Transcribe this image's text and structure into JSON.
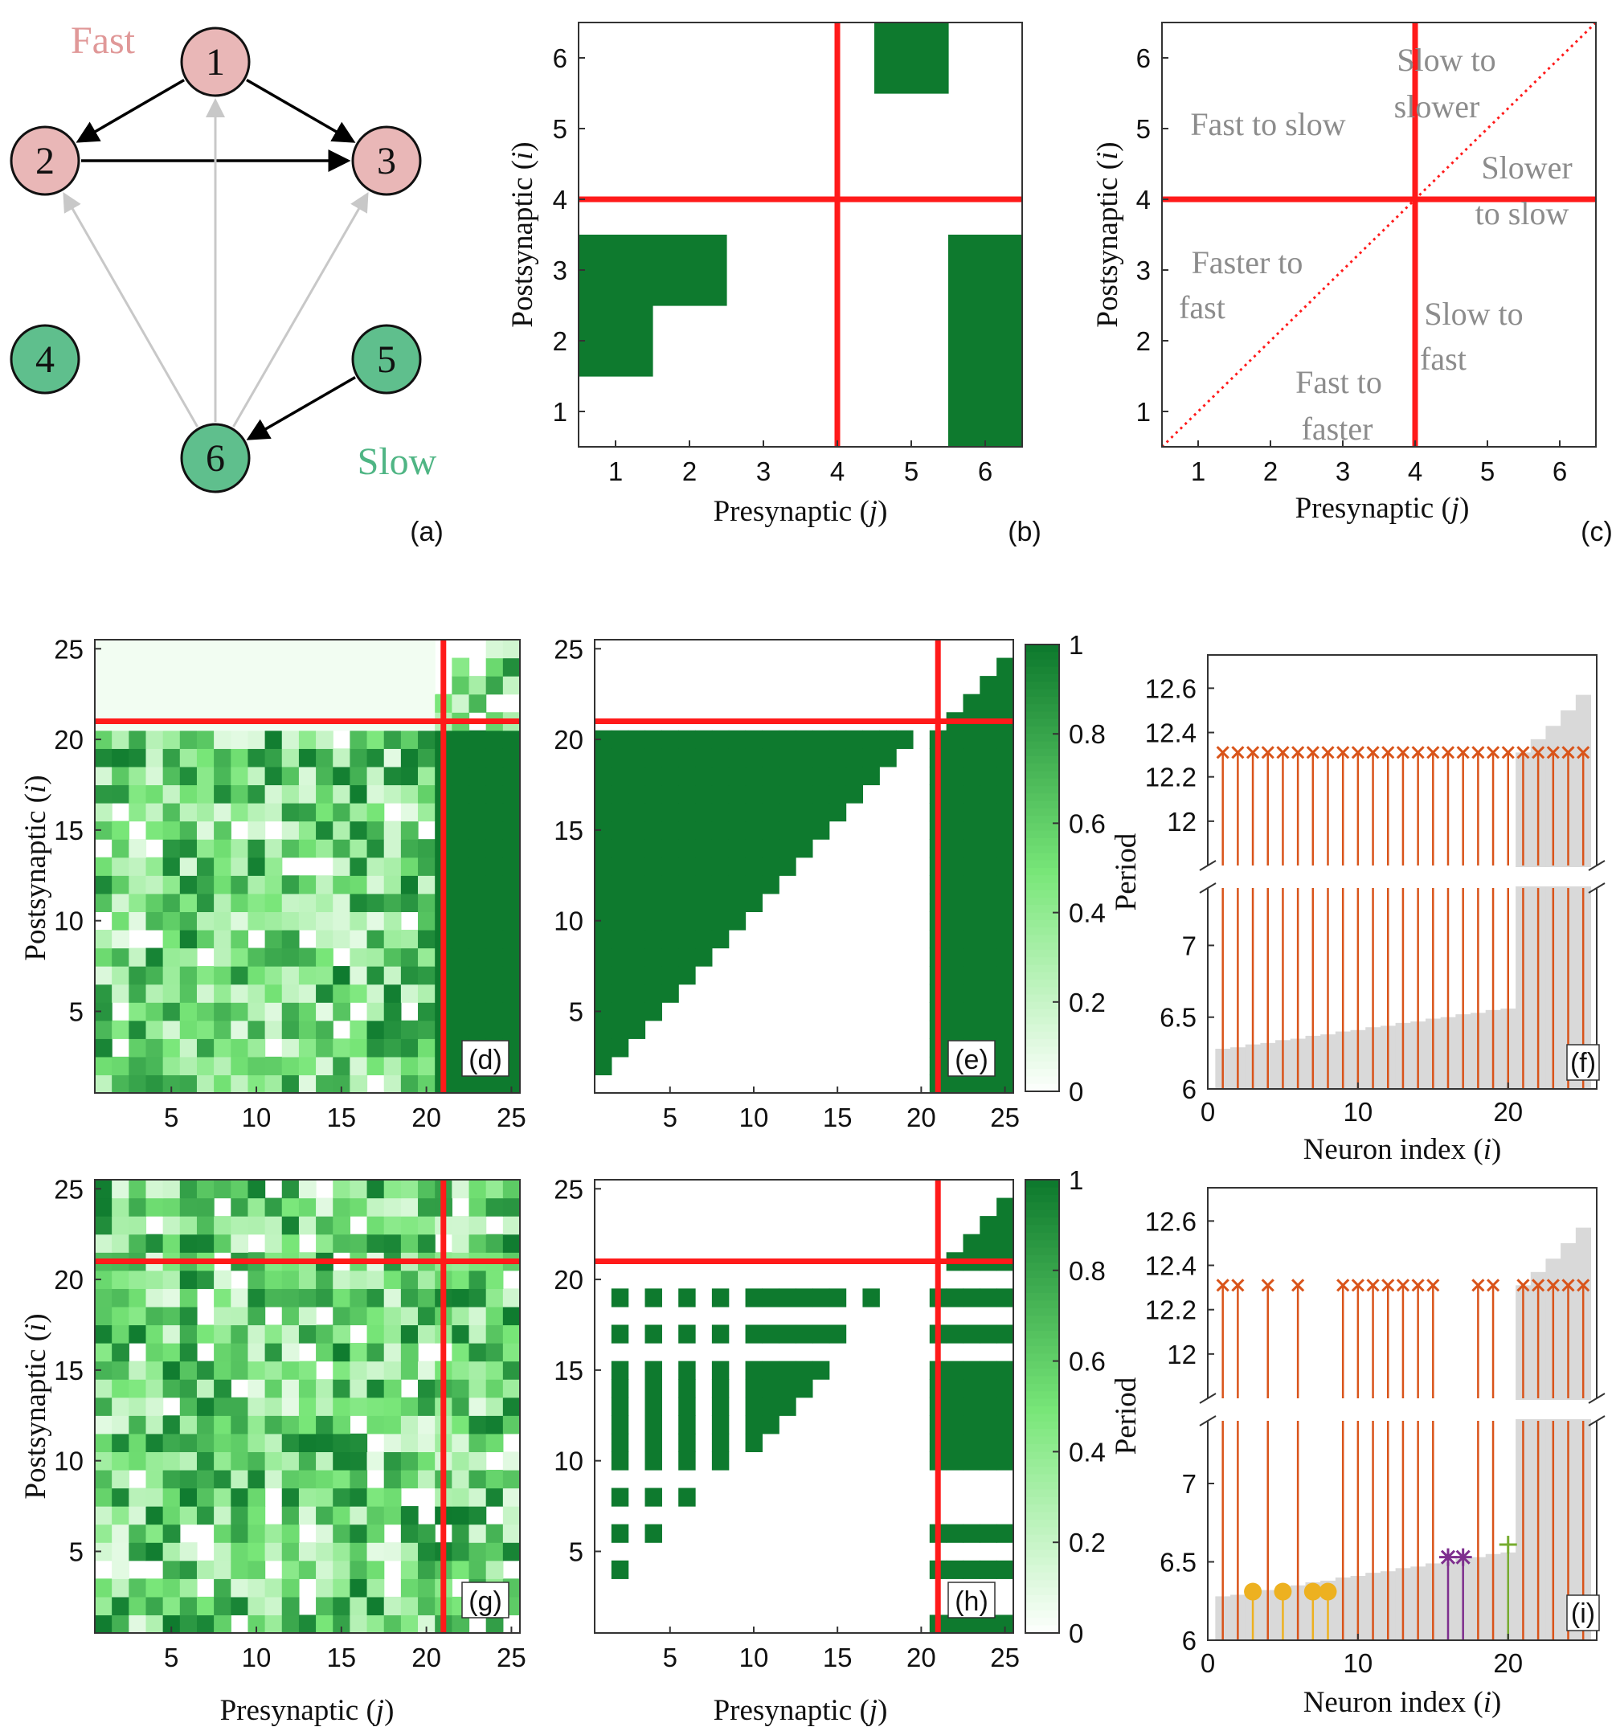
{
  "chart_data": [
    {
      "panel": "(a)",
      "type": "network",
      "group_labels": [
        {
          "text": "Fast",
          "color": "#e09898"
        },
        {
          "text": "Slow",
          "color": "#4fb584"
        }
      ],
      "fast_color": "#e9b7b7",
      "slow_color": "#5fbf8d",
      "nodes": [
        {
          "id": "1",
          "group": "fast"
        },
        {
          "id": "2",
          "group": "fast"
        },
        {
          "id": "3",
          "group": "fast"
        },
        {
          "id": "4",
          "group": "slow"
        },
        {
          "id": "5",
          "group": "slow"
        },
        {
          "id": "6",
          "group": "slow"
        }
      ],
      "edges": [
        {
          "from": "1",
          "to": "2",
          "color": "#000000"
        },
        {
          "from": "1",
          "to": "3",
          "color": "#000000"
        },
        {
          "from": "2",
          "to": "3",
          "color": "#000000"
        },
        {
          "from": "5",
          "to": "6",
          "color": "#000000"
        },
        {
          "from": "6",
          "to": "1",
          "color": "#c8c8c8"
        },
        {
          "from": "6",
          "to": "2",
          "color": "#c8c8c8"
        },
        {
          "from": "6",
          "to": "3",
          "color": "#c8c8c8"
        }
      ]
    },
    {
      "panel": "(b)",
      "type": "heatmap",
      "n": 6,
      "xlabel": "Presynaptic",
      "xvar": "j",
      "ylabel": "Postsynaptic",
      "yvar": "i",
      "xticks": [
        1,
        2,
        3,
        4,
        5,
        6
      ],
      "yticks": [
        1,
        2,
        3,
        4,
        5,
        6
      ],
      "divider": 3.5,
      "matrix": [
        [
          0,
          0,
          0,
          0,
          0,
          1
        ],
        [
          1,
          0,
          0,
          0,
          0,
          1
        ],
        [
          1,
          1,
          0,
          0,
          0,
          1
        ],
        [
          0,
          0,
          0,
          0,
          0,
          0
        ],
        [
          0,
          0,
          0,
          0,
          0,
          0
        ],
        [
          0,
          0,
          0,
          0,
          1,
          0
        ]
      ]
    },
    {
      "panel": "(c)",
      "type": "region_map",
      "n": 6,
      "xlabel": "Presynaptic",
      "xvar": "j",
      "ylabel": "Postsynaptic",
      "yvar": "i",
      "xticks": [
        1,
        2,
        3,
        4,
        5,
        6
      ],
      "yticks": [
        1,
        2,
        3,
        4,
        5,
        6
      ],
      "divider": 3.5,
      "regions": [
        {
          "lines": [
            "Fast to slow"
          ]
        },
        {
          "lines": [
            "Slow to",
            "slower"
          ]
        },
        {
          "lines": [
            "Slower",
            "to slow"
          ]
        },
        {
          "lines": [
            "Faster to",
            "fast"
          ]
        },
        {
          "lines": [
            "Slow to",
            "fast"
          ]
        },
        {
          "lines": [
            "Fast to",
            "faster"
          ]
        }
      ]
    },
    {
      "panel": "(d)",
      "type": "heatmap",
      "n": 25,
      "ylabel": "Postsynaptic",
      "yvar": "i",
      "xticks": [
        5,
        10,
        15,
        20,
        25
      ],
      "yticks": [
        5,
        10,
        15,
        20,
        25
      ],
      "divider": 20.5,
      "pattern": "random weights in [0,1]; top-left block ≈ 0.05; right block = 1; top-right random"
    },
    {
      "panel": "(e)",
      "type": "heatmap",
      "n": 25,
      "xticks": [
        5,
        10,
        15,
        20,
        25
      ],
      "yticks": [
        5,
        10,
        15,
        20,
        25
      ],
      "divider": 20.5,
      "pattern": "A[i][j] = 1 if j < i for i ≤ 20; A[i][j] = 1 for j ≥ 21, i ≤ 20; top-right: 1 if j > i"
    },
    {
      "panel": "(f)",
      "type": "bar+stem",
      "xlabel": "Neuron index",
      "xvar": "i",
      "ylabel": "Period",
      "xticks": [
        0,
        10,
        20
      ],
      "yticks_lower": [
        6,
        6.5,
        7
      ],
      "yticks_upper": [
        12,
        12.2,
        12.4,
        12.6
      ],
      "intrinsic_period": [
        6.28,
        6.29,
        6.31,
        6.32,
        6.34,
        6.35,
        6.37,
        6.38,
        6.4,
        6.41,
        6.43,
        6.44,
        6.46,
        6.47,
        6.49,
        6.5,
        6.52,
        6.53,
        6.55,
        6.56,
        12.31,
        12.37,
        12.43,
        12.5,
        12.57
      ],
      "observed_period": [
        12.31,
        12.31,
        12.31,
        12.31,
        12.31,
        12.31,
        12.31,
        12.31,
        12.31,
        12.31,
        12.31,
        12.31,
        12.31,
        12.31,
        12.31,
        12.31,
        12.31,
        12.31,
        12.31,
        12.31,
        12.31,
        12.31,
        12.31,
        12.31,
        12.31
      ],
      "marker": "×",
      "stem_color": "#d9541a"
    },
    {
      "panel": "(g)",
      "type": "heatmap",
      "n": 25,
      "xlabel": "Presynaptic",
      "xvar": "j",
      "ylabel": "Postsynaptic",
      "yvar": "i",
      "xticks": [
        5,
        10,
        15,
        20,
        25
      ],
      "yticks": [
        5,
        10,
        15,
        20,
        25
      ],
      "divider": 20.5,
      "pattern": "random weights in [0,1] across the whole matrix"
    },
    {
      "panel": "(h)",
      "type": "heatmap",
      "n": 25,
      "xlabel": "Presynaptic",
      "xvar": "j",
      "xticks": [
        5,
        10,
        15,
        20,
        25
      ],
      "yticks": [
        5,
        10,
        15,
        20,
        25
      ],
      "divider": 20.5,
      "colorbar": {
        "ticks": [
          0,
          0.2,
          0.4,
          0.6,
          0.8,
          1
        ]
      },
      "pattern": "A[i][j] = 1 if j < i and neither i nor j in {1,3,5,7,9,16,18,20}; rows 1,4,6,10–15,17,19 fully connected to slow block; top-right: 1 if j > i"
    },
    {
      "panel": "(i)",
      "type": "bar+stem",
      "xlabel": "Neuron index",
      "xvar": "i",
      "ylabel": "Period",
      "xticks": [
        0,
        10,
        20
      ],
      "yticks_lower": [
        6,
        6.5,
        7
      ],
      "yticks_upper": [
        12,
        12.2,
        12.4,
        12.6
      ],
      "intrinsic_period": [
        6.28,
        6.29,
        6.31,
        6.32,
        6.34,
        6.35,
        6.37,
        6.38,
        6.4,
        6.41,
        6.43,
        6.44,
        6.46,
        6.47,
        6.49,
        6.5,
        6.52,
        6.53,
        6.55,
        6.56,
        12.31,
        12.37,
        12.43,
        12.5,
        12.57
      ],
      "observed_period": [
        12.31,
        12.31,
        6.31,
        12.31,
        6.31,
        12.31,
        6.31,
        6.31,
        12.31,
        12.31,
        12.31,
        12.31,
        12.31,
        12.31,
        12.31,
        6.53,
        6.53,
        12.31,
        12.31,
        6.61,
        12.31,
        12.31,
        12.31,
        12.31,
        12.31
      ],
      "markers": [
        "×",
        "×",
        "●",
        "×",
        "●",
        "×",
        "●",
        "●",
        "×",
        "×",
        "×",
        "×",
        "×",
        "×",
        "×",
        "*",
        "*",
        "×",
        "×",
        "+",
        "×",
        "×",
        "×",
        "×",
        "×"
      ],
      "colors": [
        "#d9541a",
        "#d9541a",
        "#edb120",
        "#d9541a",
        "#edb120",
        "#d9541a",
        "#edb120",
        "#edb120",
        "#d9541a",
        "#d9541a",
        "#d9541a",
        "#d9541a",
        "#d9541a",
        "#d9541a",
        "#d9541a",
        "#7e2f8e",
        "#7e2f8e",
        "#d9541a",
        "#d9541a",
        "#77ac30",
        "#d9541a",
        "#d9541a",
        "#d9541a",
        "#d9541a",
        "#d9541a"
      ]
    }
  ]
}
